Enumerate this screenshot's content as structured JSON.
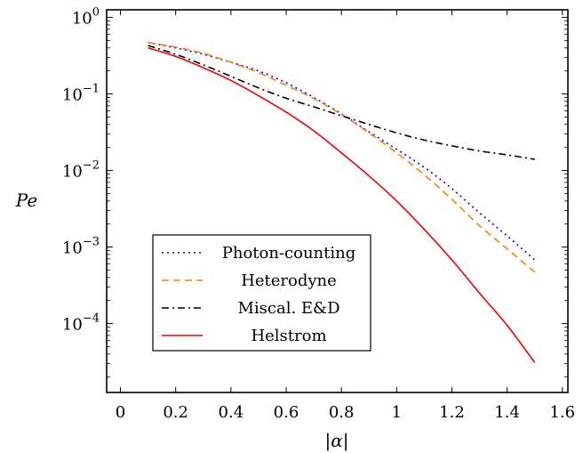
{
  "chart_data": {
    "type": "line",
    "title": "",
    "xlabel": "|α|",
    "ylabel": "Pe",
    "xlim": [
      -0.05,
      1.62
    ],
    "ylim_log10": [
      -4.9,
      0.1
    ],
    "yscale": "log",
    "grid": false,
    "legend_position": "lower-left",
    "x_ticks": [
      0,
      0.2,
      0.4,
      0.6,
      0.8,
      1,
      1.2,
      1.4,
      1.6
    ],
    "x_tick_labels": [
      "0",
      "0.2",
      "0.4",
      "0.6",
      "0.8",
      "1",
      "1.2",
      "1.4",
      "1.6"
    ],
    "y_ticks": [
      {
        "base": "10",
        "exp": "0",
        "log": 0
      },
      {
        "base": "10",
        "exp": "−1",
        "log": -1
      },
      {
        "base": "10",
        "exp": "−2",
        "log": -2
      },
      {
        "base": "10",
        "exp": "−3",
        "log": -3
      },
      {
        "base": "10",
        "exp": "−4",
        "log": -4
      }
    ],
    "x": [
      0.1,
      0.2,
      0.3,
      0.4,
      0.5,
      0.6,
      0.7,
      0.8,
      0.9,
      1.0,
      1.1,
      1.2,
      1.3,
      1.4,
      1.5
    ],
    "series": [
      {
        "name": "Photon-counting",
        "color": "#0000ff",
        "dash": "2,4",
        "values": [
          0.47,
          0.4,
          0.33,
          0.26,
          0.2,
          0.14,
          0.09,
          0.055,
          0.032,
          0.019,
          0.011,
          0.0058,
          0.0028,
          0.0014,
          0.00068
        ]
      },
      {
        "name": "Heterodyne",
        "color": "#ff8000",
        "dash": "8,5",
        "values": [
          0.47,
          0.41,
          0.34,
          0.26,
          0.19,
          0.13,
          0.087,
          0.054,
          0.031,
          0.017,
          0.0088,
          0.0042,
          0.0019,
          0.00095,
          0.00047
        ]
      },
      {
        "name": "Miscal. E&D",
        "color": "#000000",
        "dash": "8,4,2,4",
        "values": [
          0.43,
          0.33,
          0.24,
          0.17,
          0.12,
          0.088,
          0.068,
          0.052,
          0.04,
          0.031,
          0.025,
          0.021,
          0.018,
          0.016,
          0.014
        ]
      },
      {
        "name": "Helstrom",
        "color": "#ee0000",
        "dash": "",
        "values": [
          0.4,
          0.31,
          0.22,
          0.15,
          0.095,
          0.058,
          0.033,
          0.017,
          0.0085,
          0.004,
          0.0017,
          0.00068,
          0.00025,
          9.5e-05,
          3.1e-05
        ]
      }
    ]
  }
}
